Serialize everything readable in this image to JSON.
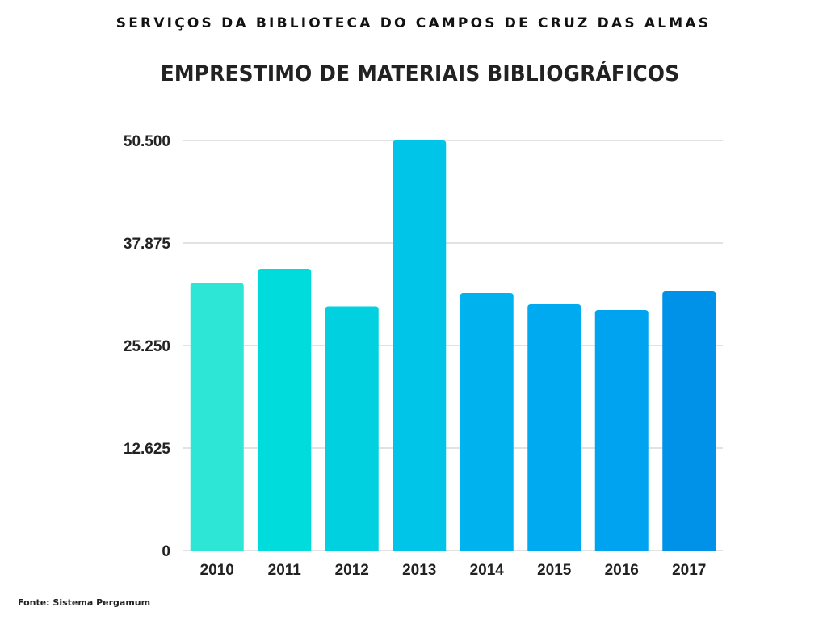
{
  "chart_data": {
    "type": "bar",
    "supertitle": "SERVIÇOS DA BIBLIOTECA DO CAMPOS DE CRUZ DAS ALMAS",
    "title": "EMPRESTIMO DE MATERIAIS BIBLIOGRÁFICOS",
    "xlabel": "",
    "ylabel": "",
    "categories": [
      "2010",
      "2011",
      "2012",
      "2013",
      "2014",
      "2015",
      "2016",
      "2017"
    ],
    "values": [
      32950,
      34700,
      30070,
      50500,
      31710,
      30320,
      29620,
      31910
    ],
    "colors": [
      "#2ee6d6",
      "#00dbdb",
      "#00d0e0",
      "#00c4e8",
      "#00b3ee",
      "#00aaf0",
      "#00a3ef",
      "#0092e8"
    ],
    "ylim": [
      0,
      50500
    ],
    "yticks": [
      0,
      12625,
      25250,
      37875,
      50500
    ],
    "ytick_labels": [
      "0",
      "12.625",
      "25.250",
      "37.875",
      "50.500"
    ],
    "grid": true,
    "legend": "none",
    "source": "Fonte: Sistema Pergamum"
  }
}
